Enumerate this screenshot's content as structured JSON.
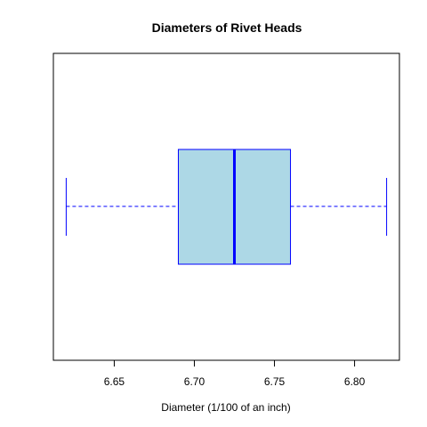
{
  "chart_data": {
    "type": "boxplot",
    "title": "Diameters of Rivet Heads",
    "xlabel": "Diameter (1/100 of an inch)",
    "ylabel": "",
    "orientation": "horizontal",
    "xlim": [
      6.612,
      6.828
    ],
    "x_ticks": [
      6.65,
      6.7,
      6.75,
      6.8
    ],
    "x_tick_labels": [
      "6.65",
      "6.70",
      "6.75",
      "6.80"
    ],
    "boxes": [
      {
        "min": 6.62,
        "q1": 6.69,
        "median": 6.725,
        "q3": 6.76,
        "max": 6.82
      }
    ],
    "box_fill": "#add8e6",
    "box_stroke": "#0000ff",
    "whisker_style": "dashed",
    "grid": false,
    "legend": "none"
  }
}
